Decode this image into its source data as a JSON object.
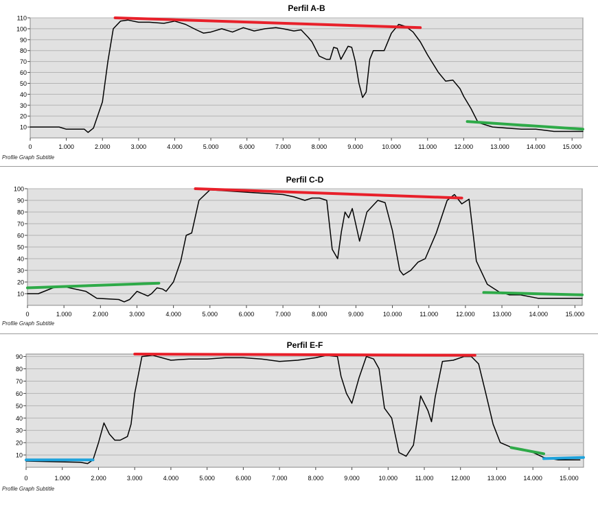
{
  "colors": {
    "plot_bg": "#e1e1e1",
    "grid": "#b4b4b4",
    "profile_line": "#000000",
    "red_trend": "#e8202a",
    "green_trend": "#2eaa48",
    "blue_trend": "#1fa3dc"
  },
  "chart_data": [
    {
      "type": "line",
      "title": "Perfil A-B",
      "subtitle": "Profile Graph Subtitle",
      "xlim": [
        0,
        15300
      ],
      "ylim": [
        0,
        110
      ],
      "x_ticks": [
        0,
        1000,
        2000,
        3000,
        4000,
        5000,
        6000,
        7000,
        8000,
        9000,
        10000,
        11000,
        12000,
        13000,
        14000,
        15000
      ],
      "x_tick_labels": [
        "0",
        "1.000",
        "2.000",
        "3.000",
        "4.000",
        "5.000",
        "6.000",
        "7.000",
        "8.000",
        "9.000",
        "10.000",
        "11.000",
        "12.000",
        "13.000",
        "14.000",
        "15.000"
      ],
      "y_ticks": [
        10,
        20,
        30,
        40,
        50,
        60,
        70,
        80,
        90,
        100,
        110
      ],
      "grid": true,
      "series": [
        {
          "role": "profile",
          "color": "#000000",
          "x": [
            0,
            800,
            1000,
            1500,
            1600,
            1750,
            2000,
            2150,
            2300,
            2500,
            2700,
            3000,
            3300,
            3700,
            4000,
            4300,
            4600,
            4800,
            5000,
            5300,
            5600,
            5900,
            6200,
            6500,
            6800,
            7000,
            7300,
            7500,
            7700,
            7800,
            8000,
            8200,
            8300,
            8400,
            8500,
            8600,
            8800,
            8900,
            9000,
            9100,
            9200,
            9300,
            9400,
            9500,
            9600,
            9800,
            10000,
            10200,
            10400,
            10600,
            10800,
            11000,
            11300,
            11500,
            11700,
            11900,
            12000,
            12200,
            12400,
            12800,
            13200,
            13600,
            14000,
            14500,
            15300
          ],
          "y": [
            10,
            10,
            8,
            8,
            5,
            9,
            33,
            70,
            100,
            107,
            108,
            106,
            106,
            105,
            107,
            104,
            99,
            96,
            97,
            100,
            97,
            101,
            98,
            100,
            101,
            100,
            98,
            99,
            92,
            88,
            75,
            72,
            72,
            83,
            82,
            72,
            84,
            83,
            70,
            50,
            37,
            42,
            72,
            80,
            80,
            80,
            96,
            104,
            102,
            97,
            88,
            76,
            60,
            52,
            53,
            45,
            38,
            27,
            14,
            10,
            9,
            8,
            8,
            6,
            6
          ]
        },
        {
          "role": "trend",
          "color": "#e8202a",
          "x": [
            2350,
            10800
          ],
          "y": [
            110,
            101
          ]
        },
        {
          "role": "trend",
          "color": "#2eaa48",
          "x": [
            12100,
            15300
          ],
          "y": [
            15,
            8
          ]
        }
      ]
    },
    {
      "type": "line",
      "title": "Perfil C-D",
      "subtitle": "Profile Graph Subtitle",
      "xlim": [
        0,
        15200
      ],
      "ylim": [
        0,
        100
      ],
      "x_ticks": [
        0,
        1000,
        2000,
        3000,
        4000,
        5000,
        6000,
        7000,
        8000,
        9000,
        10000,
        11000,
        12000,
        13000,
        14000,
        15000
      ],
      "x_tick_labels": [
        "0",
        "1.000",
        "2.000",
        "3.000",
        "4.000",
        "5.000",
        "6.000",
        "7.000",
        "8.000",
        "9.000",
        "10.000",
        "11.000",
        "12.000",
        "13.000",
        "14.000",
        "15.000"
      ],
      "y_ticks": [
        10,
        20,
        30,
        40,
        50,
        60,
        70,
        80,
        90,
        100
      ],
      "grid": true,
      "series": [
        {
          "role": "profile",
          "color": "#000000",
          "x": [
            0,
            300,
            700,
            1000,
            1600,
            1900,
            2500,
            2650,
            2800,
            3000,
            3300,
            3400,
            3550,
            3700,
            3800,
            4000,
            4200,
            4350,
            4500,
            4700,
            5000,
            5500,
            6000,
            6500,
            7000,
            7300,
            7600,
            7800,
            8000,
            8200,
            8350,
            8500,
            8600,
            8700,
            8800,
            8900,
            9100,
            9300,
            9600,
            9800,
            10000,
            10200,
            10300,
            10500,
            10700,
            10900,
            11200,
            11500,
            11700,
            11900,
            12100,
            12300,
            12600,
            12800,
            13000,
            13100,
            13200,
            13500,
            14000,
            14500,
            15200
          ],
          "y": [
            10,
            10,
            15,
            16,
            12,
            6,
            5,
            3,
            5,
            12,
            8,
            10,
            15,
            14,
            12,
            20,
            38,
            60,
            62,
            90,
            99,
            98,
            97,
            96,
            95,
            93,
            90,
            92,
            92,
            90,
            48,
            40,
            63,
            80,
            75,
            83,
            55,
            80,
            90,
            88,
            64,
            30,
            26,
            30,
            37,
            40,
            62,
            90,
            95,
            87,
            91,
            38,
            18,
            14,
            10,
            10,
            9,
            9,
            6,
            6,
            6
          ]
        },
        {
          "role": "trend",
          "color": "#e8202a",
          "x": [
            4600,
            11900
          ],
          "y": [
            100,
            92
          ]
        },
        {
          "role": "trend",
          "color": "#2eaa48",
          "x": [
            0,
            3600
          ],
          "y": [
            15,
            19
          ]
        },
        {
          "role": "trend",
          "color": "#2eaa48",
          "x": [
            12500,
            15200
          ],
          "y": [
            11,
            9
          ]
        }
      ]
    },
    {
      "type": "line",
      "title": "Perfil E-F",
      "subtitle": "Profile Graph Subtitle",
      "xlim": [
        0,
        15400
      ],
      "ylim": [
        0,
        92
      ],
      "x_ticks": [
        0,
        1000,
        2000,
        3000,
        4000,
        5000,
        6000,
        7000,
        8000,
        9000,
        10000,
        11000,
        12000,
        13000,
        14000,
        15000
      ],
      "x_tick_labels": [
        "0",
        "1.000",
        "2.000",
        "3.000",
        "4.000",
        "5.000",
        "6.000",
        "7.000",
        "8.000",
        "9.000",
        "10.000",
        "11.000",
        "12.000",
        "13.000",
        "14.000",
        "15.000"
      ],
      "y_ticks": [
        10,
        20,
        30,
        40,
        50,
        60,
        70,
        80,
        90
      ],
      "grid": true,
      "series": [
        {
          "role": "profile",
          "color": "#000000",
          "x": [
            0,
            1500,
            1700,
            1850,
            2000,
            2150,
            2300,
            2450,
            2600,
            2800,
            2900,
            3000,
            3200,
            3500,
            4000,
            4500,
            5000,
            5500,
            6000,
            6500,
            7000,
            7500,
            8000,
            8300,
            8600,
            8700,
            8850,
            9000,
            9200,
            9400,
            9600,
            9750,
            9900,
            10100,
            10300,
            10500,
            10700,
            10900,
            11100,
            11200,
            11300,
            11500,
            11800,
            12100,
            12300,
            12500,
            12700,
            12900,
            13100,
            13500,
            14000,
            14300,
            14700,
            15300
          ],
          "y": [
            5,
            4,
            3,
            6,
            20,
            36,
            27,
            22,
            22,
            25,
            35,
            60,
            90,
            91,
            87,
            88,
            88,
            89,
            89,
            88,
            86,
            87,
            89,
            91,
            90,
            74,
            60,
            52,
            73,
            90,
            88,
            80,
            48,
            40,
            12,
            9,
            18,
            58,
            46,
            37,
            57,
            86,
            87,
            90,
            90,
            84,
            60,
            35,
            20,
            15,
            12,
            8,
            6,
            6
          ]
        },
        {
          "role": "trend",
          "color": "#e8202a",
          "x": [
            3000,
            12400
          ],
          "y": [
            92,
            91
          ]
        },
        {
          "role": "trend",
          "color": "#2eaa48",
          "x": [
            13400,
            14300
          ],
          "y": [
            16,
            11
          ]
        },
        {
          "role": "trend",
          "color": "#1fa3dc",
          "x": [
            0,
            1850
          ],
          "y": [
            6,
            6
          ]
        },
        {
          "role": "trend",
          "color": "#1fa3dc",
          "x": [
            14300,
            15400
          ],
          "y": [
            7,
            8
          ]
        }
      ]
    }
  ]
}
